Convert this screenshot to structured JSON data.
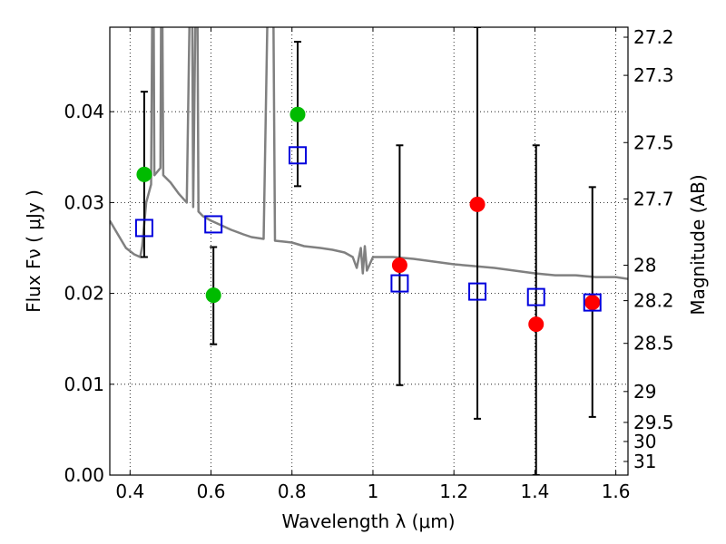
{
  "chart_data": {
    "type": "scatter",
    "xlabel": "Wavelength  λ (μm)",
    "ylabel": "Flux  Fν  ( μJy )",
    "ylabel_right": "Magnitude (AB)",
    "xlim": [
      0.35,
      1.63
    ],
    "ylim": [
      0.0,
      0.0493
    ],
    "x_ticks": [
      0.4,
      0.6,
      0.8,
      1.0,
      1.2,
      1.4,
      1.6
    ],
    "x_tick_labels": [
      "0.4",
      "0.6",
      "0.8",
      "1",
      "1.2",
      "1.4",
      "1.6"
    ],
    "y_ticks": [
      0.0,
      0.01,
      0.02,
      0.03,
      0.04
    ],
    "y_tick_labels": [
      "0.00",
      "0.01",
      "0.02",
      "0.03",
      "0.04"
    ],
    "right_ticks": [
      {
        "label": "27.2",
        "flux": 0.0482
      },
      {
        "label": "27.3",
        "flux": 0.044
      },
      {
        "label": "27.5",
        "flux": 0.0366
      },
      {
        "label": "27.7",
        "flux": 0.0304
      },
      {
        "label": "28",
        "flux": 0.0231
      },
      {
        "label": "28.2",
        "flux": 0.0192
      },
      {
        "label": "28.5",
        "flux": 0.0145
      },
      {
        "label": "29",
        "flux": 0.0092
      },
      {
        "label": "29.5",
        "flux": 0.0058
      },
      {
        "label": "30",
        "flux": 0.0037
      },
      {
        "label": "31",
        "flux": 0.0015
      }
    ],
    "grid": true,
    "colors": {
      "green": "#00bb00",
      "red": "#ff0000",
      "model": "#808080",
      "box": "#0000dd",
      "errorbar": "#000000"
    },
    "series": [
      {
        "marker": "circle",
        "color": "green",
        "points": [
          {
            "x": 0.435,
            "y": 0.0331
          },
          {
            "x": 0.606,
            "y": 0.0198
          },
          {
            "x": 0.814,
            "y": 0.0397
          }
        ]
      },
      {
        "marker": "circle",
        "color": "red",
        "points": [
          {
            "x": 1.066,
            "y": 0.0231
          },
          {
            "x": 1.258,
            "y": 0.0298
          },
          {
            "x": 1.403,
            "y": 0.0166
          },
          {
            "x": 1.542,
            "y": 0.019
          }
        ]
      },
      {
        "marker": "open-square",
        "color": "box",
        "points": [
          {
            "x": 0.435,
            "y": 0.0272
          },
          {
            "x": 0.606,
            "y": 0.0276
          },
          {
            "x": 0.814,
            "y": 0.0352
          },
          {
            "x": 1.066,
            "y": 0.0211
          },
          {
            "x": 1.258,
            "y": 0.0202
          },
          {
            "x": 1.403,
            "y": 0.0196
          },
          {
            "x": 1.542,
            "y": 0.019
          }
        ]
      }
    ],
    "errorbars": [
      {
        "x": 0.435,
        "lo": 0.024,
        "hi": 0.0422
      },
      {
        "x": 0.606,
        "lo": 0.0144,
        "hi": 0.0251
      },
      {
        "x": 0.814,
        "lo": 0.0318,
        "hi": 0.0477
      },
      {
        "x": 1.066,
        "lo": 0.0099,
        "hi": 0.0363
      },
      {
        "x": 1.258,
        "lo": 0.0062,
        "hi": 0.0493
      },
      {
        "x": 1.403,
        "lo": 0.0,
        "hi": 0.0363
      },
      {
        "x": 1.542,
        "lo": 0.0064,
        "hi": 0.0317
      }
    ],
    "model_spectrum": [
      [
        0.35,
        0.028
      ],
      [
        0.37,
        0.0265
      ],
      [
        0.39,
        0.025
      ],
      [
        0.41,
        0.0243
      ],
      [
        0.425,
        0.024
      ],
      [
        0.43,
        0.0252
      ],
      [
        0.44,
        0.03
      ],
      [
        0.452,
        0.032
      ],
      [
        0.457,
        0.065
      ],
      [
        0.46,
        0.033
      ],
      [
        0.475,
        0.0338
      ],
      [
        0.478,
        0.065
      ],
      [
        0.482,
        0.033
      ],
      [
        0.5,
        0.0322
      ],
      [
        0.52,
        0.031
      ],
      [
        0.54,
        0.03
      ],
      [
        0.552,
        0.065
      ],
      [
        0.556,
        0.0295
      ],
      [
        0.565,
        0.065
      ],
      [
        0.569,
        0.029
      ],
      [
        0.58,
        0.0285
      ],
      [
        0.6,
        0.028
      ],
      [
        0.62,
        0.0276
      ],
      [
        0.65,
        0.027
      ],
      [
        0.68,
        0.0265
      ],
      [
        0.7,
        0.0262
      ],
      [
        0.73,
        0.026
      ],
      [
        0.745,
        0.065
      ],
      [
        0.752,
        0.065
      ],
      [
        0.758,
        0.0258
      ],
      [
        0.78,
        0.0257
      ],
      [
        0.8,
        0.0256
      ],
      [
        0.83,
        0.0252
      ],
      [
        0.87,
        0.025
      ],
      [
        0.9,
        0.0248
      ],
      [
        0.93,
        0.0245
      ],
      [
        0.95,
        0.024
      ],
      [
        0.96,
        0.0228
      ],
      [
        0.97,
        0.025
      ],
      [
        0.975,
        0.0222
      ],
      [
        0.98,
        0.0252
      ],
      [
        0.985,
        0.0225
      ],
      [
        1.0,
        0.024
      ],
      [
        1.05,
        0.024
      ],
      [
        1.1,
        0.0238
      ],
      [
        1.15,
        0.0235
      ],
      [
        1.2,
        0.0232
      ],
      [
        1.25,
        0.023
      ],
      [
        1.3,
        0.0228
      ],
      [
        1.35,
        0.0225
      ],
      [
        1.4,
        0.0222
      ],
      [
        1.45,
        0.022
      ],
      [
        1.5,
        0.022
      ],
      [
        1.55,
        0.0218
      ],
      [
        1.6,
        0.0218
      ],
      [
        1.63,
        0.0216
      ]
    ]
  }
}
